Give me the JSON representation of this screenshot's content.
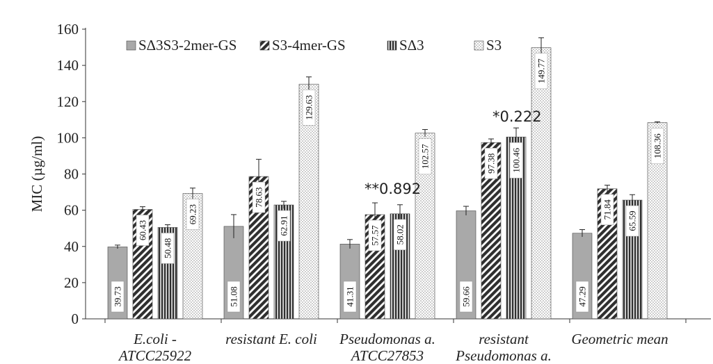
{
  "chart_data": {
    "type": "bar",
    "title": "",
    "ylabel": "MIC (µg/ml)",
    "xlabel": "",
    "ylim": [
      0,
      160
    ],
    "yticks": [
      0,
      20,
      40,
      60,
      80,
      100,
      120,
      140,
      160
    ],
    "grid": false,
    "legend_position": "top-left",
    "categories": [
      [
        "E.coli -",
        "ATCC25922"
      ],
      [
        "resistant E. coli"
      ],
      [
        "Pseudomonas a.",
        "ATCC27853"
      ],
      [
        "resistant",
        "Pseudomonas a."
      ],
      [
        "Geometric mean"
      ]
    ],
    "series": [
      {
        "name": "SΔ3S3-2mer-GS",
        "pattern": "solid-gray",
        "values": [
          39.73,
          51.08,
          41.31,
          59.66,
          47.29
        ],
        "labels": [
          "39.73",
          "51.08",
          "41.31",
          "59.66",
          "47.29"
        ],
        "errors": [
          1,
          6.5,
          2.5,
          2.5,
          2
        ]
      },
      {
        "name": "S3-4mer-GS",
        "pattern": "diagonal-hatch",
        "values": [
          60.43,
          78.63,
          57.57,
          97.38,
          71.84
        ],
        "labels": [
          "60.43",
          "78.63",
          "57.57",
          "97.38",
          "71.84"
        ],
        "errors": [
          1.5,
          9.5,
          6.5,
          2,
          2
        ]
      },
      {
        "name": "SΔ3",
        "pattern": "vertical-stripes",
        "values": [
          50.48,
          62.91,
          58.02,
          100.46,
          65.59
        ],
        "labels": [
          "50.48",
          "62.91",
          "58.02",
          "100.46",
          "65.59"
        ],
        "errors": [
          1.5,
          2,
          5,
          5,
          3
        ]
      },
      {
        "name": "S3",
        "pattern": "dotted",
        "values": [
          69.23,
          129.63,
          102.57,
          149.77,
          108.36
        ],
        "labels": [
          "69.23",
          "129.63",
          "102.57",
          "149.77",
          "108.36"
        ],
        "errors": [
          3,
          4,
          2,
          5.5,
          0.5
        ]
      }
    ],
    "annotations": [
      {
        "text": "**0.892",
        "category_index": 2
      },
      {
        "text": "*0.222",
        "category_index": 3
      }
    ]
  }
}
